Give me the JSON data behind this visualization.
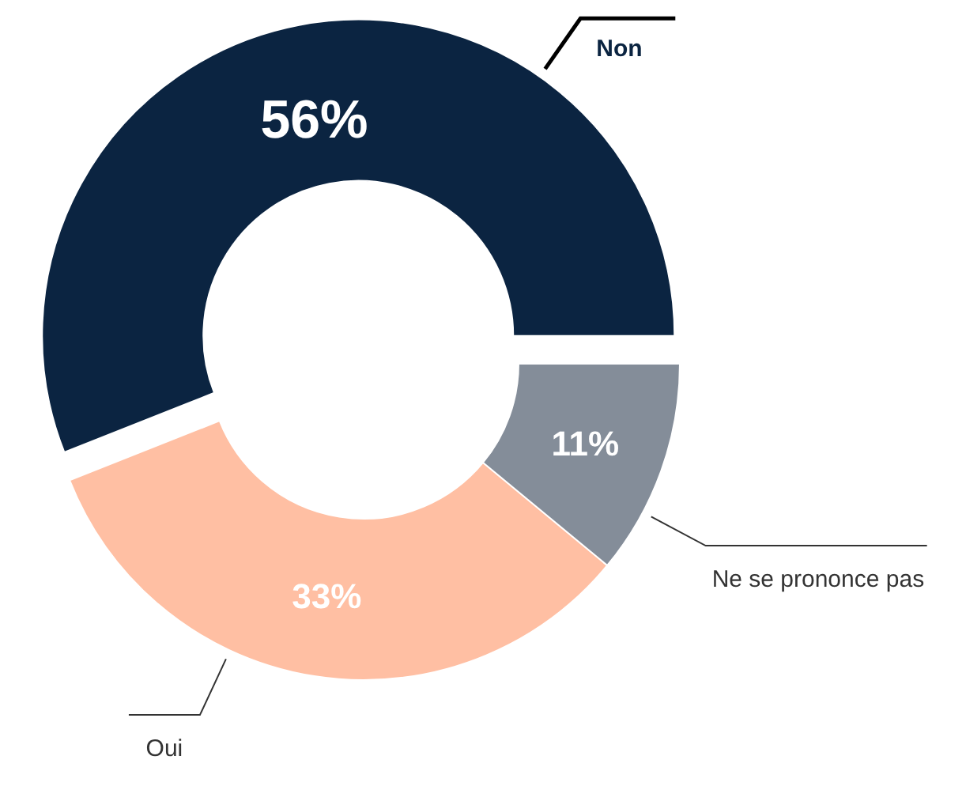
{
  "chart_data": {
    "type": "donut",
    "categories": [
      "Non",
      "Oui",
      "Ne se prononce pas"
    ],
    "values": [
      56,
      33,
      11
    ],
    "colors": [
      "#0b2441",
      "#ffbfa3",
      "#848d99"
    ],
    "value_labels": [
      "56%",
      "33%",
      "11%"
    ]
  }
}
